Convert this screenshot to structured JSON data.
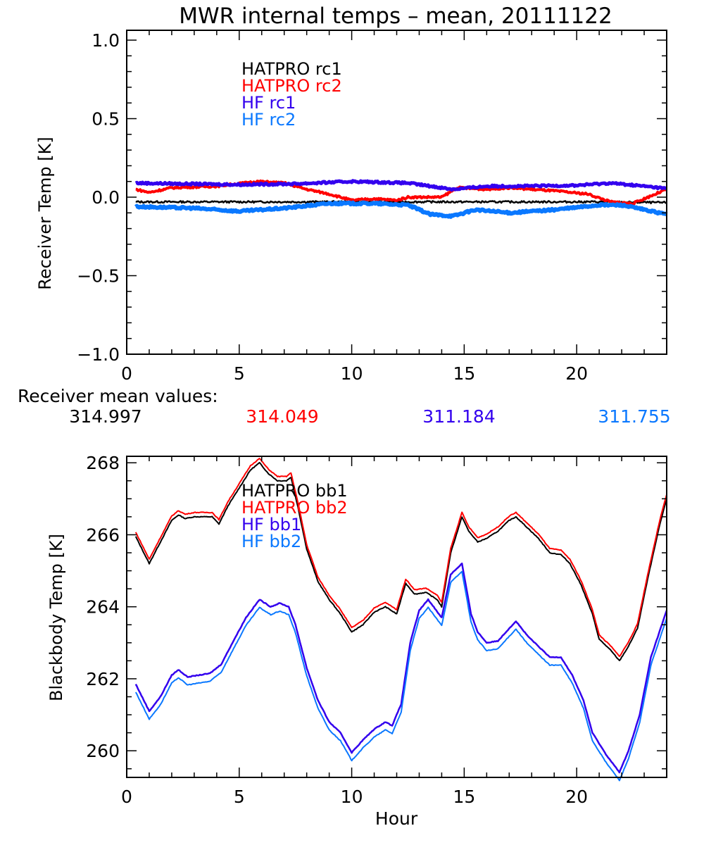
{
  "title": "MWR internal temps – mean, 20111122",
  "mean_values": {
    "label": "Receiver mean values:",
    "values": [
      "314.997",
      "314.049",
      "311.184",
      "311.755"
    ]
  },
  "colors": {
    "HATPRO_1": "#000000",
    "HATPRO_2": "#ff0000",
    "HF_1": "#3300ee",
    "HF_2": "#0a78ff"
  },
  "chart_data": [
    {
      "type": "line",
      "title": "MWR internal temps – mean, 20111122",
      "xlabel": "",
      "ylabel": "Receiver Temp [K]",
      "xlim": [
        0,
        24
      ],
      "ylim": [
        -1.0,
        1.0
      ],
      "xticks": [
        "0",
        "5",
        "10",
        "15",
        "20"
      ],
      "yticks": [
        "−1.0",
        "−0.5",
        "0.0",
        "0.5",
        "1.0"
      ],
      "legend_placement": "top-left-center",
      "series": [
        {
          "name": "HATPRO rc1",
          "color": "#000000",
          "x": [
            0.4,
            3,
            6,
            9,
            12,
            15,
            18,
            21,
            24
          ],
          "y": [
            -0.03,
            -0.03,
            -0.03,
            -0.03,
            -0.03,
            -0.03,
            -0.03,
            -0.03,
            -0.035
          ]
        },
        {
          "name": "HATPRO rc2",
          "color": "#ff0000",
          "x": [
            0.4,
            1,
            2,
            4,
            5.8,
            7,
            8,
            9,
            10,
            11,
            12,
            12.5,
            14,
            14.7,
            16,
            17,
            19,
            20.5,
            21.5,
            22.5,
            23.5,
            24
          ],
          "y": [
            0.05,
            0.03,
            0.06,
            0.07,
            0.1,
            0.09,
            0.05,
            0.02,
            -0.02,
            -0.01,
            -0.02,
            0.0,
            0.0,
            0.06,
            0.05,
            0.06,
            0.04,
            0.02,
            -0.03,
            -0.04,
            0.02,
            0.05
          ]
        },
        {
          "name": "HF rc1",
          "color": "#3300ee",
          "x": [
            0.4,
            2.5,
            5,
            7.5,
            10,
            12.5,
            14.5,
            16,
            17.5,
            20,
            21.5,
            23,
            24
          ],
          "y": [
            0.09,
            0.085,
            0.08,
            0.085,
            0.1,
            0.09,
            0.05,
            0.07,
            0.07,
            0.075,
            0.09,
            0.07,
            0.055
          ]
        },
        {
          "name": "HF rc2",
          "color": "#0a78ff",
          "x": [
            0.4,
            3,
            5,
            7,
            9,
            11,
            12.5,
            13.5,
            14.5,
            15.5,
            17,
            19,
            21,
            22,
            23,
            24
          ],
          "y": [
            -0.06,
            -0.07,
            -0.09,
            -0.07,
            -0.04,
            -0.04,
            -0.05,
            -0.11,
            -0.12,
            -0.08,
            -0.1,
            -0.08,
            -0.05,
            -0.05,
            -0.08,
            -0.11
          ]
        }
      ]
    },
    {
      "type": "line",
      "xlabel": "Hour",
      "ylabel": "Blackbody Temp [K]",
      "xlim": [
        0,
        24
      ],
      "ylim": [
        259.26,
        268.18
      ],
      "xticks": [
        "0",
        "5",
        "10",
        "15",
        "20"
      ],
      "yticks": [
        "260",
        "262",
        "264",
        "266",
        "268"
      ],
      "legend_placement": "top-left-center",
      "series": [
        {
          "name": "HATPRO bb1",
          "color": "#000000",
          "x": [
            0.4,
            1.0,
            1.5,
            2.0,
            2.3,
            2.6,
            3.0,
            3.5,
            3.8,
            4.1,
            4.5,
            5.0,
            5.5,
            5.9,
            6.3,
            6.7,
            7.1,
            7.3,
            7.6,
            8.0,
            8.5,
            9.0,
            9.5,
            10.0,
            10.5,
            11.0,
            11.5,
            12.0,
            12.4,
            12.8,
            13.3,
            13.8,
            14.0,
            14.4,
            14.9,
            15.2,
            15.6,
            16.0,
            16.5,
            17.0,
            17.3,
            17.8,
            18.3,
            18.8,
            19.3,
            19.7,
            20.2,
            20.7,
            21.0,
            21.5,
            21.9,
            22.3,
            22.7,
            23.2,
            23.7,
            24.0
          ],
          "y": [
            265.95,
            265.2,
            265.8,
            266.4,
            266.55,
            266.45,
            266.5,
            266.5,
            266.5,
            266.3,
            266.8,
            267.3,
            267.8,
            268.0,
            267.7,
            267.5,
            267.5,
            267.6,
            266.8,
            265.6,
            264.7,
            264.2,
            263.8,
            263.3,
            263.5,
            263.85,
            264.0,
            263.8,
            264.65,
            264.35,
            264.4,
            264.2,
            264.0,
            265.5,
            266.5,
            266.1,
            265.8,
            265.9,
            266.1,
            266.4,
            266.5,
            266.2,
            265.9,
            265.5,
            265.45,
            265.2,
            264.6,
            263.8,
            263.1,
            262.8,
            262.5,
            262.9,
            263.4,
            264.9,
            266.3,
            267.0
          ]
        },
        {
          "name": "HATPRO bb2",
          "color": "#ff0000",
          "offset_from_bb1": 0.12
        },
        {
          "name": "HF bb1",
          "color": "#3300ee",
          "x": [
            0.4,
            1.0,
            1.5,
            2.0,
            2.3,
            2.7,
            3.2,
            3.7,
            4.2,
            4.7,
            5.3,
            5.9,
            6.4,
            6.8,
            7.2,
            7.5,
            8.0,
            8.5,
            9.0,
            9.5,
            10.0,
            10.5,
            11.0,
            11.5,
            11.8,
            12.2,
            12.6,
            13.0,
            13.4,
            14.0,
            14.4,
            14.9,
            15.3,
            15.6,
            16.0,
            16.5,
            17.0,
            17.3,
            17.8,
            18.3,
            18.8,
            19.3,
            19.8,
            20.3,
            20.7,
            21.3,
            21.9,
            22.3,
            22.8,
            23.3,
            24.0
          ],
          "y": [
            261.85,
            261.1,
            261.5,
            262.1,
            262.25,
            262.05,
            262.1,
            262.15,
            262.4,
            263.0,
            263.7,
            264.2,
            264.0,
            264.1,
            264.0,
            263.5,
            262.3,
            261.4,
            260.8,
            260.5,
            259.95,
            260.3,
            260.6,
            260.8,
            260.7,
            261.3,
            263.0,
            263.9,
            264.2,
            263.7,
            264.9,
            265.2,
            263.8,
            263.3,
            263.0,
            263.05,
            263.4,
            263.6,
            263.2,
            262.9,
            262.6,
            262.6,
            262.1,
            261.4,
            260.5,
            259.9,
            259.4,
            260.0,
            261.0,
            262.6,
            263.9
          ]
        },
        {
          "name": "HF bb2",
          "color": "#0a78ff",
          "offset_from_bb1": -0.22
        }
      ]
    }
  ]
}
